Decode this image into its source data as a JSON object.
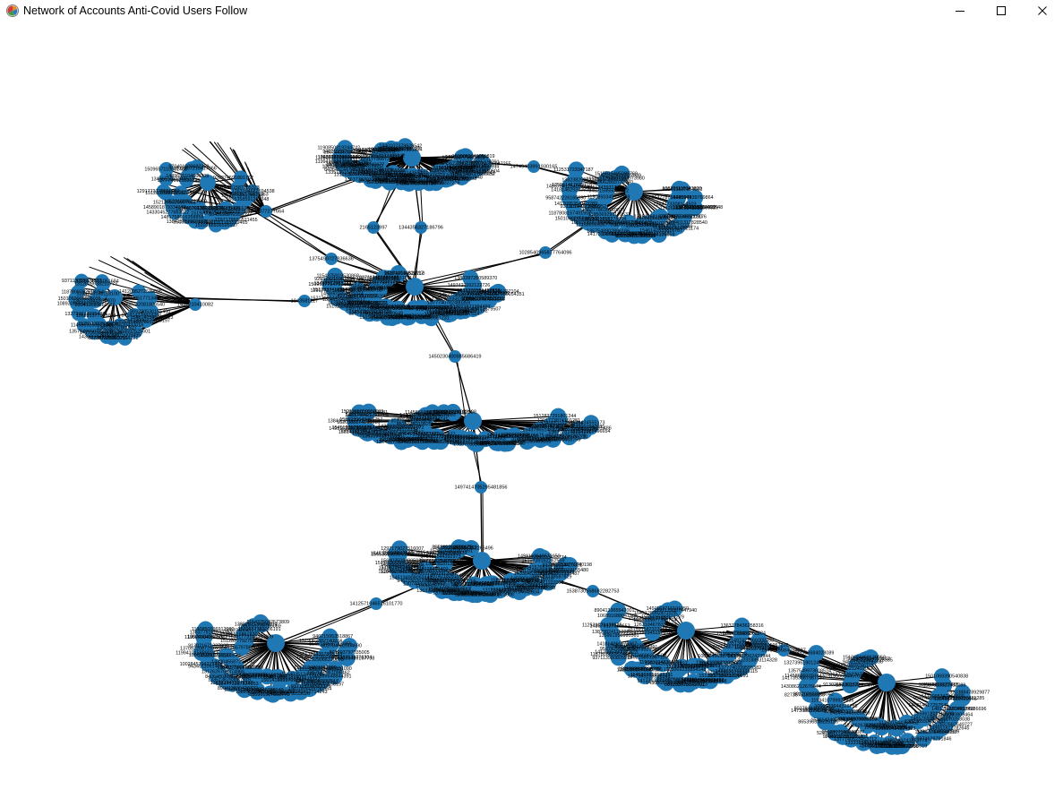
{
  "window": {
    "title": "Network of Accounts Anti-Covid Users Follow",
    "icon": "matplotlib-figure-icon",
    "controls": {
      "minimize": "minimize-icon",
      "maximize": "maximize-icon",
      "close": "close-icon"
    }
  },
  "colors": {
    "node": "#1f77b4",
    "edge": "#000000",
    "label": "#000000",
    "background": "#ffffff"
  },
  "graph": {
    "type": "network",
    "clusters": [
      {
        "id": "c1",
        "hub_label": "",
        "size": 70
      },
      {
        "id": "c2",
        "hub_label": "",
        "size": 55
      },
      {
        "id": "c3",
        "hub_label": "",
        "size": 32
      },
      {
        "id": "c4",
        "hub_label": "",
        "size": 30
      },
      {
        "id": "c5",
        "hub_label": "",
        "size": 70
      },
      {
        "id": "c6",
        "hub_label": "",
        "size": 75
      },
      {
        "id": "c7",
        "hub_label": "",
        "size": 70
      },
      {
        "id": "c8",
        "hub_label": "",
        "size": 65
      },
      {
        "id": "c9",
        "hub_label": "",
        "size": 65
      },
      {
        "id": "c10",
        "hub_label": "",
        "size": 70
      }
    ],
    "connectors": [
      {
        "id": "b1",
        "label": "1043377277664",
        "links": [
          "c3",
          "c1",
          "c5"
        ]
      },
      {
        "id": "b2",
        "label": "2165123997",
        "links": [
          "c1",
          "c5"
        ]
      },
      {
        "id": "b3",
        "label": "1344356327186796",
        "links": [
          "c1",
          "c5"
        ]
      },
      {
        "id": "b4",
        "label": "1028540965877764096",
        "links": [
          "c5",
          "c2"
        ]
      },
      {
        "id": "b5",
        "label": "14749403991930165",
        "links": [
          "c1",
          "c2"
        ]
      },
      {
        "id": "b6",
        "label": "1375490727836636",
        "links": [
          "c5",
          "c3"
        ]
      },
      {
        "id": "b7",
        "label": "1043581127",
        "links": [
          "c4",
          "c5"
        ]
      },
      {
        "id": "b8",
        "label": "1437210410082",
        "links": [
          "c4"
        ]
      },
      {
        "id": "b9",
        "label": "1450230400985686419",
        "links": [
          "c5",
          "c6"
        ]
      },
      {
        "id": "b10",
        "label": "1497414705295481856",
        "links": [
          "c6",
          "c7"
        ]
      },
      {
        "id": "b11",
        "label": "1412571046516101770",
        "links": [
          "c7",
          "c8"
        ]
      },
      {
        "id": "b12",
        "label": "1538730558682282753",
        "links": [
          "c7",
          "c9"
        ]
      },
      {
        "id": "b13",
        "label": "1546145584654587",
        "links": [
          "c9",
          "c10"
        ]
      }
    ],
    "sample_labels": [
      "1473006",
      "852584",
      "803784",
      "801203",
      "827387",
      "143086",
      "1417393",
      "1357549",
      "1145869",
      "1327396",
      "1089308",
      "1501069",
      "1187808",
      "937113",
      "1412095",
      "958742",
      "141814",
      "135961",
      "148576",
      "138238",
      "112531",
      "106891",
      "890413",
      "1363778",
      "1284773",
      "1312626",
      "1335136",
      "840648",
      "943451",
      "1002845",
      "1096133",
      "1199410",
      "1370522",
      "913021",
      "1195069",
      "1363778",
      "1307443",
      "1190850",
      "946215",
      "1545134",
      "1519062",
      "1513624",
      "1264567",
      "1422929",
      "1515915",
      "1263194",
      "1564035",
      "1565358",
      "1561416",
      "1545128",
      "1297179",
      "1491163",
      "1520388",
      "1519239",
      "1384157",
      "1481758",
      "1433045",
      "1458901",
      "1521265",
      "1512837",
      "1291773",
      "1349651",
      "1509657",
      "920374",
      "1380281",
      "1154375",
      "1380287",
      "1497421",
      "1519200",
      "1440107",
      "1528907",
      "1452318",
      "1333382",
      "1377740",
      "1489655",
      "1512807",
      "970401",
      "529795",
      "865390",
      "1546142"
    ]
  }
}
